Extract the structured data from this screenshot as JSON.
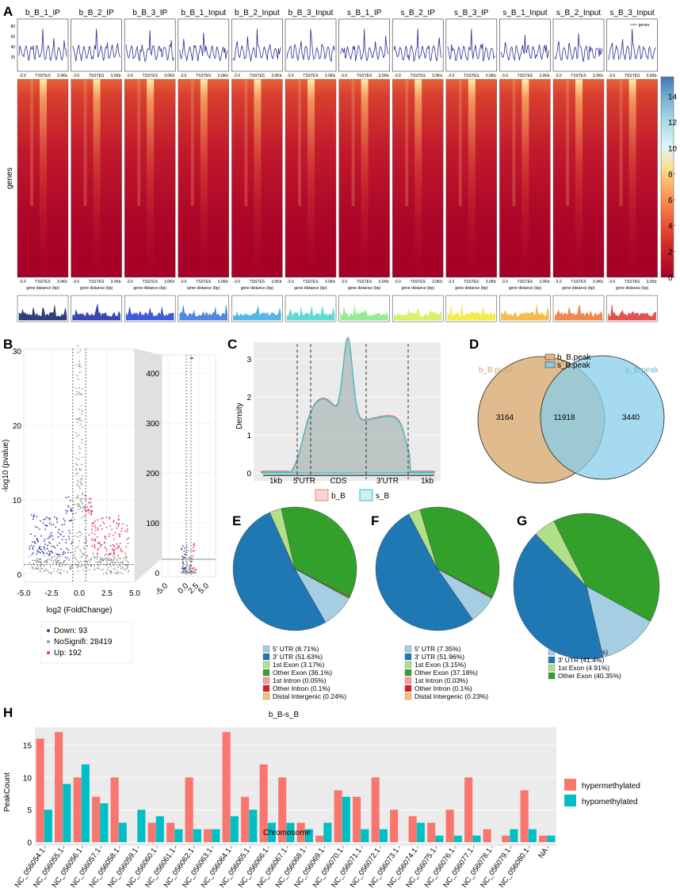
{
  "panels": {
    "A": "A",
    "B": "B",
    "C": "C",
    "D": "D",
    "E": "E",
    "F": "F",
    "G": "G",
    "H": "H"
  },
  "panel_a": {
    "samples": [
      "b_B_1_IP",
      "b_B_2_IP",
      "b_B_3_IP",
      "b_B_1_Input",
      "b_B_2_Input",
      "b_B_3_Input",
      "s_B_1_IP",
      "s_B_2_IP",
      "s_B_3_IP",
      "s_B_1_Input",
      "s_B_2_Input",
      "s_B_3_Input"
    ],
    "profile_yticks": [
      "80",
      "60",
      "40",
      "20"
    ],
    "tick_left": "-3.0",
    "tick_mid": "TSSTES",
    "tick_right": "3.0Kb",
    "xlabel": "gene distance (bp)",
    "legend_label": "genes",
    "ylabel": "genes",
    "colorbar_ticks": [
      "14",
      "12",
      "10",
      "8",
      "6",
      "4",
      "2",
      "0"
    ],
    "colorbar_range": [
      0,
      15.5
    ],
    "bottom_colors": [
      "#1a2a6e",
      "#2233aa",
      "#2b4ad6",
      "#3b7be0",
      "#42aee6",
      "#4dd6d0",
      "#8ee88a",
      "#d2ef5c",
      "#f3ea3a",
      "#f4b43a",
      "#ef7a36",
      "#e0403a"
    ]
  },
  "panel_b": {
    "ylabel": "-log10 (pvalue)",
    "xlabel": "log2 (FoldChange)",
    "yticks": [
      "0",
      "10",
      "20",
      "30"
    ],
    "xticks": [
      "-5.0",
      "-2.5",
      "0.0",
      "2.5",
      "5.0"
    ],
    "zoom_yticks": [
      "0",
      "100",
      "200",
      "300",
      "400"
    ],
    "zoom_xticks": [
      "-5.0",
      "0.0",
      "2.5",
      "5.0"
    ],
    "legend": [
      {
        "label": "Down: 93",
        "color": "#3a3f9e"
      },
      {
        "label": "NoSignifi: 28419",
        "color": "#a0a0a0"
      },
      {
        "label": "Up: 192",
        "color": "#e8345a"
      }
    ]
  },
  "panel_c": {
    "ylabel": "Density",
    "yticks": [
      "0",
      "1",
      "2",
      "3"
    ],
    "segments": [
      "1kb",
      "5'UTR",
      "CDS",
      "3'UTR",
      "1kb"
    ],
    "legend": [
      {
        "label": "b_B",
        "color": "#f08080"
      },
      {
        "label": "s_B",
        "color": "#2ec4c4"
      }
    ]
  },
  "panel_d": {
    "legend": [
      "b_B.peak",
      "s_B.peak"
    ],
    "left_label": "b_B.peak",
    "right_label": "s_B.peak",
    "left_only": "3164",
    "overlap": "11918",
    "right_only": "3440",
    "left_color": "#deb887",
    "right_color": "#87ceeb"
  },
  "pies": [
    {
      "panel": "E",
      "slices": [
        {
          "label": "5' UTR (8.71%)",
          "value": 8.71,
          "color": "#a6cee3"
        },
        {
          "label": "3' UTR (51.63%)",
          "value": 51.63,
          "color": "#1f78b4"
        },
        {
          "label": "1st Exon (3.17%)",
          "value": 3.17,
          "color": "#b2df8a"
        },
        {
          "label": "Other Exon (36.1%)",
          "value": 36.1,
          "color": "#33a02c"
        },
        {
          "label": "1st Intron (0.05%)",
          "value": 0.05,
          "color": "#fb9a99"
        },
        {
          "label": "Other Intron (0.1%)",
          "value": 0.1,
          "color": "#e31a1c"
        },
        {
          "label": "Distal Intergenic (0.24%)",
          "value": 0.24,
          "color": "#fdbf6f"
        }
      ]
    },
    {
      "panel": "F",
      "slices": [
        {
          "label": "5' UTR (7.35%)",
          "value": 7.35,
          "color": "#a6cee3"
        },
        {
          "label": "3' UTR (51.96%)",
          "value": 51.96,
          "color": "#1f78b4"
        },
        {
          "label": "1st Exon (3.15%)",
          "value": 3.15,
          "color": "#b2df8a"
        },
        {
          "label": "Other Exon (37.18%)",
          "value": 37.18,
          "color": "#33a02c"
        },
        {
          "label": "1st Intron (0.03%)",
          "value": 0.03,
          "color": "#fb9a99"
        },
        {
          "label": "Other Intron (0.1%)",
          "value": 0.1,
          "color": "#e31a1c"
        },
        {
          "label": "Distal Intergenic (0.23%)",
          "value": 0.23,
          "color": "#fdbf6f"
        }
      ]
    },
    {
      "panel": "G",
      "slices": [
        {
          "label": "5' UTR (13.33%)",
          "value": 13.33,
          "color": "#a6cee3"
        },
        {
          "label": "3' UTR (41.4%)",
          "value": 41.4,
          "color": "#1f78b4"
        },
        {
          "label": "1st Exon (4.91%)",
          "value": 4.91,
          "color": "#b2df8a"
        },
        {
          "label": "Other Exon (40.35%)",
          "value": 40.35,
          "color": "#33a02c"
        }
      ]
    }
  ],
  "chart_data": {
    "type": "bar",
    "title": "b_B-s_B",
    "xlabel": "Chromosome",
    "ylabel": "PeakCount",
    "ylim": [
      0,
      17.5
    ],
    "yticks": [
      "0",
      "5",
      "10",
      "15"
    ],
    "categories": [
      "NC_056054.1",
      "NC_056055.1",
      "NC_056056.1",
      "NC_056057.1",
      "NC_056058.1",
      "NC_056059.1",
      "NC_056060.1",
      "NC_056061.1",
      "NC_056062.1",
      "NC_056063.1",
      "NC_056064.1",
      "NC_056065.1",
      "NC_056066.1",
      "NC_056067.1",
      "NC_056068.1",
      "NC_056069.1",
      "NC_056070.1",
      "NC_056071.1",
      "NC_056072.1",
      "NC_056073.1",
      "NC_056074.1",
      "NC_056075.1",
      "NC_056076.1",
      "NC_056077.1",
      "NC_056078.1",
      "NC_056079.1",
      "NC_056080.1",
      "NA"
    ],
    "series": [
      {
        "name": "hypermethylated",
        "color": "#f8766d",
        "values": [
          16,
          17,
          10,
          7,
          10,
          0,
          3,
          3,
          10,
          2,
          17,
          7,
          12,
          10,
          3,
          1,
          8,
          7,
          10,
          5,
          4,
          3,
          5,
          10,
          2,
          1,
          8,
          1
        ]
      },
      {
        "name": "hypomethylated",
        "color": "#00bfc4",
        "values": [
          5,
          9,
          12,
          6,
          3,
          5,
          4,
          2,
          2,
          2,
          4,
          5,
          3,
          3,
          2,
          3,
          7,
          2,
          2,
          0,
          3,
          1,
          1,
          1,
          0,
          2,
          2,
          1
        ]
      }
    ],
    "legend": [
      "hypermethylated",
      "hypomethylated"
    ],
    "na_label": "NA"
  }
}
